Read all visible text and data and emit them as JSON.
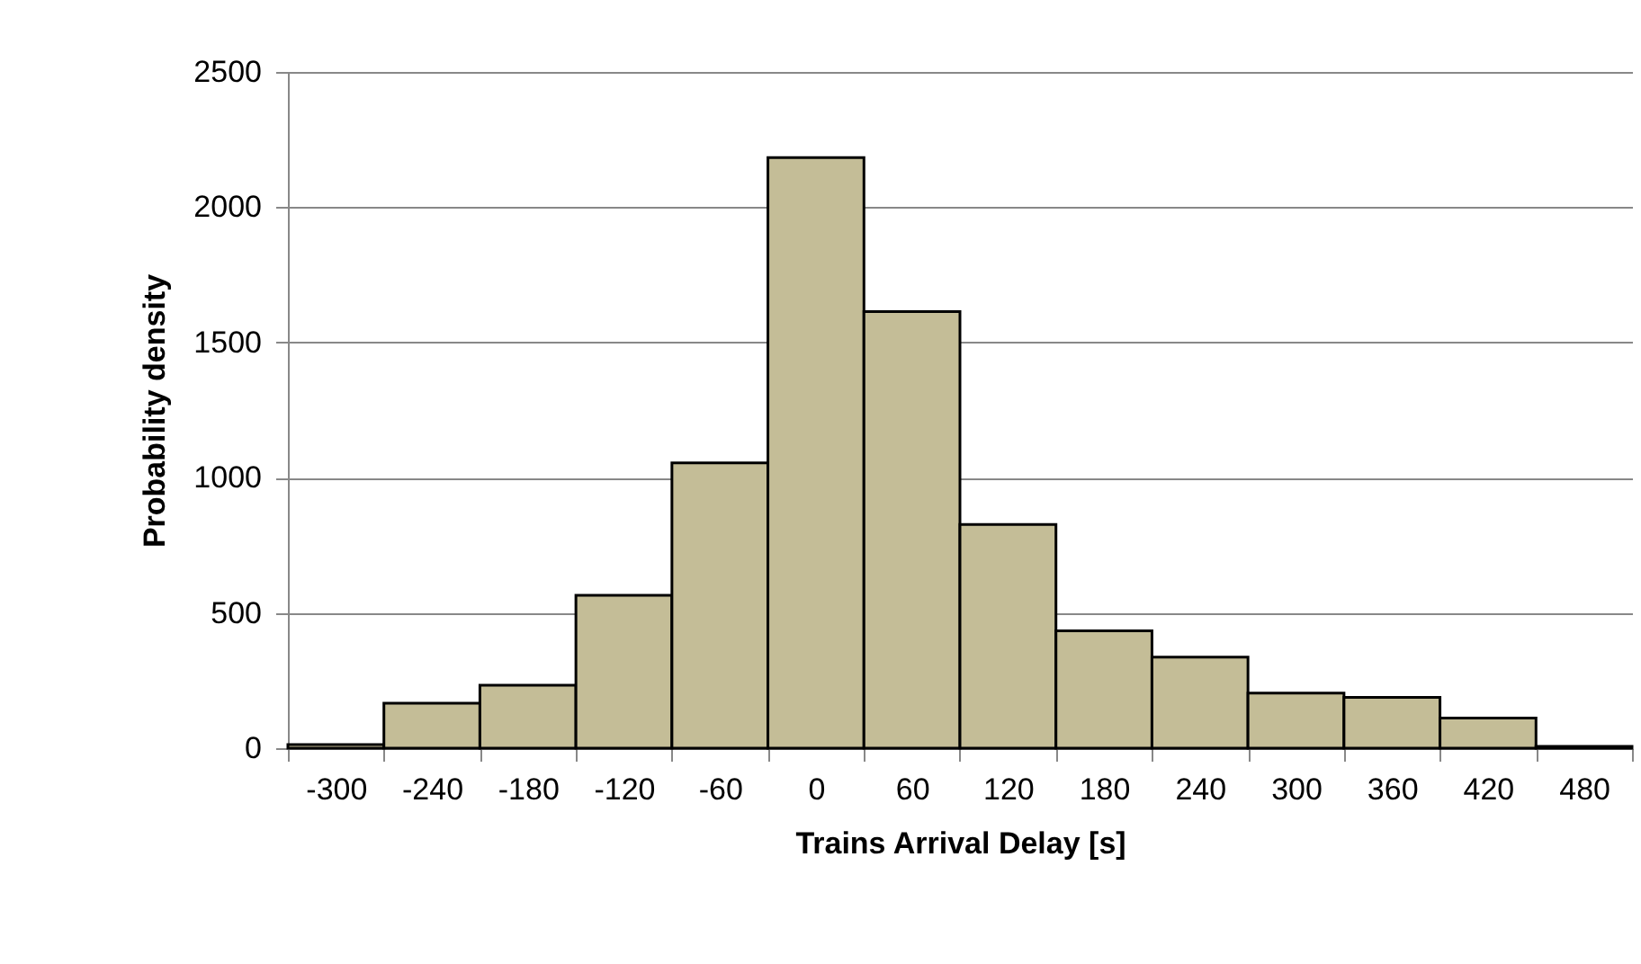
{
  "chart_data": {
    "type": "bar",
    "xlabel": "Trains Arrival Delay [s]",
    "ylabel": "Probability density",
    "categories": [
      "-300",
      "-240",
      "-180",
      "-120",
      "-60",
      "0",
      "60",
      "120",
      "180",
      "240",
      "300",
      "360",
      "420",
      "480"
    ],
    "values": [
      13,
      166,
      233,
      565,
      1055,
      2183,
      1614,
      827,
      434,
      337,
      204,
      188,
      111,
      7
    ],
    "color": "#c4bd97",
    "ylim": [
      0,
      2500
    ],
    "yticks": [
      0,
      500,
      1000,
      1500,
      2000,
      2500
    ],
    "grid": "y"
  }
}
